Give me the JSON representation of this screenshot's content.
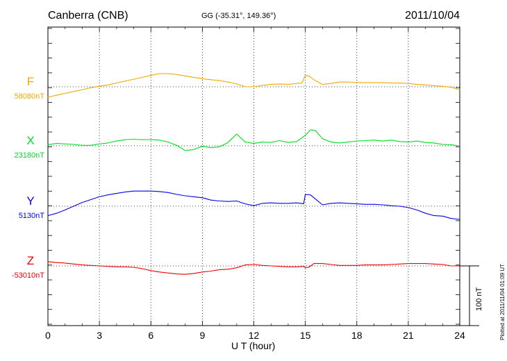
{
  "header": {
    "station": "Canberra (CNB)",
    "coordinates": "GG (-35.31°, 149.36°)",
    "date": "2011/10/04"
  },
  "footer": {
    "plotted_note": "Plotted at 2011/11/04 01:09 UT"
  },
  "chart_data": {
    "type": "line",
    "title": "Canberra (CNB)",
    "subtitle": "GG (-35.31°, 149.36°)",
    "date": "2011/10/04",
    "xlabel": "U T (hour)",
    "xlim": [
      0,
      24
    ],
    "xticks": [
      0,
      3,
      6,
      9,
      12,
      15,
      18,
      21,
      24
    ],
    "grid": true,
    "scale_bar": "100 nT",
    "series": [
      {
        "name": "F",
        "baseline_label": "58080nT",
        "color": "#f2a900",
        "base_value": 58080,
        "x": [
          0,
          0.5,
          1,
          1.5,
          2,
          2.5,
          3,
          3.5,
          4,
          4.5,
          5,
          5.5,
          6,
          6.5,
          7,
          7.5,
          8,
          8.5,
          9,
          9.5,
          10,
          10.5,
          11,
          11.5,
          12,
          12.5,
          13,
          13.5,
          14,
          14.5,
          14.8,
          15,
          15.2,
          15.5,
          16,
          16.5,
          17,
          17.5,
          18,
          18.5,
          19,
          19.5,
          20,
          20.5,
          21,
          21.5,
          22,
          22.5,
          23,
          23.5,
          24
        ],
        "values": [
          58058,
          58062,
          58066,
          58070,
          58074,
          58078,
          58081,
          58084,
          58088,
          58092,
          58096,
          58100,
          58104,
          58108,
          58108,
          58106,
          58103,
          58100,
          58097,
          58095,
          58093,
          58090,
          58086,
          58080,
          58080,
          58083,
          58085,
          58086,
          58085,
          58087,
          58088,
          58104,
          58103,
          58095,
          58085,
          58087,
          58090,
          58090,
          58089,
          58089,
          58089,
          58089,
          58088,
          58088,
          58087,
          58085,
          58084,
          58082,
          58081,
          58079,
          58074
        ]
      },
      {
        "name": "X",
        "baseline_label": "23180nT",
        "color": "#00dd20",
        "base_value": 23180,
        "x": [
          0,
          0.5,
          1,
          1.5,
          2,
          2.5,
          3,
          3.5,
          4,
          4.5,
          5,
          5.5,
          6,
          6.5,
          7,
          7.5,
          8,
          8.5,
          9,
          9.5,
          10,
          10.5,
          11,
          11.5,
          12,
          12.5,
          13,
          13.5,
          14,
          14.5,
          15,
          15.3,
          15.6,
          16,
          16.5,
          17,
          17.5,
          18,
          18.5,
          19,
          19.5,
          20,
          20.5,
          21,
          21.5,
          22,
          22.5,
          23,
          23.5,
          24
        ],
        "values": [
          23182,
          23185,
          23184,
          23183,
          23181,
          23181,
          23184,
          23186,
          23190,
          23193,
          23194,
          23193,
          23193,
          23192,
          23188,
          23181,
          23170,
          23172,
          23179,
          23176,
          23178,
          23187,
          23205,
          23188,
          23185,
          23188,
          23187,
          23191,
          23187,
          23189,
          23202,
          23214,
          23212,
          23195,
          23188,
          23186,
          23188,
          23190,
          23191,
          23192,
          23190,
          23192,
          23189,
          23188,
          23190,
          23187,
          23186,
          23183,
          23182,
          23180
        ]
      },
      {
        "name": "Y",
        "baseline_label": "5130nT",
        "color": "#0000ee",
        "base_value": 5130,
        "x": [
          0,
          0.5,
          1,
          1.5,
          2,
          2.5,
          3,
          3.5,
          4,
          4.5,
          5,
          5.5,
          6,
          6.5,
          7,
          7.5,
          8,
          8.5,
          9,
          9.5,
          10,
          10.5,
          11,
          11.5,
          12,
          12.5,
          13,
          13.5,
          14,
          14.5,
          14.9,
          15,
          15.3,
          15.6,
          16,
          16.5,
          17,
          17.5,
          18,
          18.5,
          19,
          19.5,
          20,
          20.5,
          21,
          21.5,
          22,
          22.5,
          23,
          23.5,
          24
        ],
        "values": [
          5110,
          5115,
          5122,
          5130,
          5138,
          5144,
          5150,
          5154,
          5157,
          5160,
          5162,
          5162,
          5162,
          5161,
          5159,
          5155,
          5152,
          5150,
          5148,
          5143,
          5141,
          5140,
          5141,
          5135,
          5131,
          5136,
          5137,
          5136,
          5136,
          5137,
          5135,
          5155,
          5154,
          5145,
          5133,
          5136,
          5137,
          5136,
          5135,
          5134,
          5134,
          5133,
          5131,
          5130,
          5127,
          5122,
          5115,
          5110,
          5109,
          5104,
          5102
        ]
      },
      {
        "name": "Z",
        "baseline_label": "-53010nT",
        "color": "#ee0000",
        "base_value": -53010,
        "x": [
          0,
          0.5,
          1,
          1.5,
          2,
          2.5,
          3,
          3.5,
          4,
          4.5,
          5,
          5.5,
          6,
          6.5,
          7,
          7.5,
          8,
          8.5,
          9,
          9.5,
          10,
          10.5,
          11,
          11.5,
          12,
          12.5,
          13,
          13.5,
          14,
          14.5,
          14.9,
          15,
          15.2,
          15.5,
          16,
          16.5,
          17,
          17.5,
          18,
          18.5,
          19,
          19.5,
          20,
          20.5,
          21,
          21.5,
          22,
          22.5,
          23,
          23.5,
          24
        ],
        "values": [
          -53001,
          -53003,
          -53004,
          -53006,
          -53008,
          -53009,
          -53010,
          -53011,
          -53012,
          -53012,
          -53013,
          -53016,
          -53020,
          -53023,
          -53025,
          -53027,
          -53028,
          -53026,
          -53023,
          -53021,
          -53018,
          -53017,
          -53014,
          -53008,
          -53007,
          -53009,
          -53010,
          -53011,
          -53012,
          -53012,
          -53011,
          -53014,
          -53013,
          -53005,
          -53005,
          -53007,
          -53009,
          -53009,
          -53009,
          -53008,
          -53008,
          -53008,
          -53007,
          -53006,
          -53005,
          -53005,
          -53005,
          -53006,
          -53007,
          -53010,
          -53010
        ]
      }
    ]
  }
}
